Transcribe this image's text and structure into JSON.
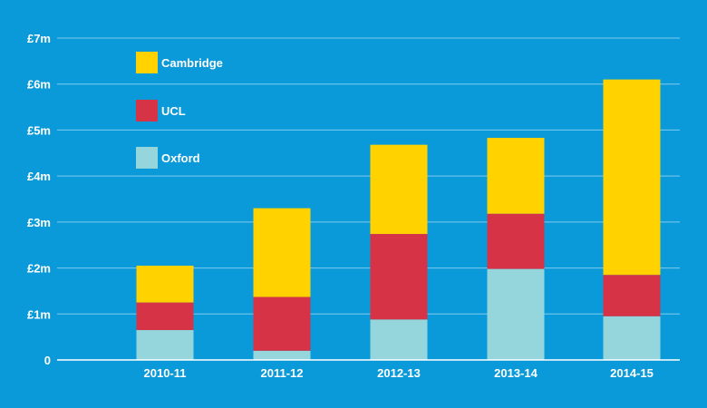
{
  "chart_data": {
    "type": "bar",
    "stacked": true,
    "title": "",
    "xlabel": "",
    "ylabel": "",
    "categories": [
      "2010-11",
      "2011-12",
      "2012-13",
      "2013-14",
      "2014-15"
    ],
    "series": [
      {
        "name": "Oxford",
        "color": "#94d6dc",
        "values": [
          0.65,
          0.2,
          0.88,
          1.98,
          0.95
        ]
      },
      {
        "name": "UCL",
        "color": "#d63347",
        "values": [
          0.6,
          1.17,
          1.86,
          1.2,
          0.9
        ]
      },
      {
        "name": "Cambridge",
        "color": "#ffd200",
        "values": [
          0.8,
          1.93,
          1.94,
          1.65,
          4.25
        ]
      }
    ],
    "ylim": [
      0,
      7
    ],
    "yticks": [
      {
        "value": 0,
        "label": "0"
      },
      {
        "value": 1,
        "label": "£1m"
      },
      {
        "value": 2,
        "label": "£2m"
      },
      {
        "value": 3,
        "label": "£3m"
      },
      {
        "value": 4,
        "label": "£4m"
      },
      {
        "value": 5,
        "label": "£5m"
      },
      {
        "value": 6,
        "label": "£6m"
      },
      {
        "value": 7,
        "label": "£7m"
      }
    ],
    "legend": {
      "placement": "top-left",
      "order": [
        "Cambridge",
        "UCL",
        "Oxford"
      ]
    },
    "grid": true,
    "background": "#0b9ad9"
  }
}
